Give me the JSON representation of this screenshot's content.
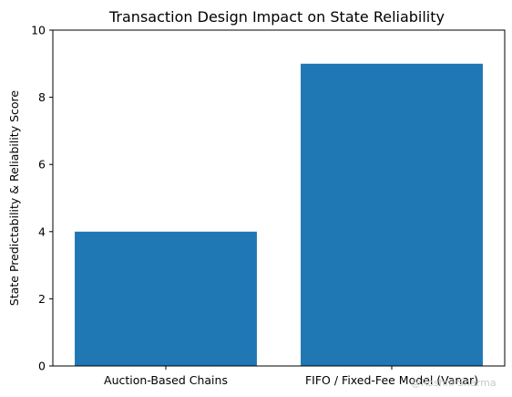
{
  "chart_data": {
    "type": "bar",
    "title": "Transaction Design Impact on State Reliability",
    "xlabel": "",
    "ylabel": "State Predictability & Reliability Score",
    "categories": [
      "Auction-Based Chains",
      "FIFO / Fixed-Fee Model (Vanar)"
    ],
    "values": [
      4,
      9
    ],
    "ylim": [
      0,
      10
    ],
    "yticks": [
      "0",
      "2",
      "4",
      "6",
      "8",
      "10"
    ],
    "bar_color": "#1f77b4",
    "grid": false,
    "legend": "none"
  },
  "watermark": "@Roshni Sharma"
}
